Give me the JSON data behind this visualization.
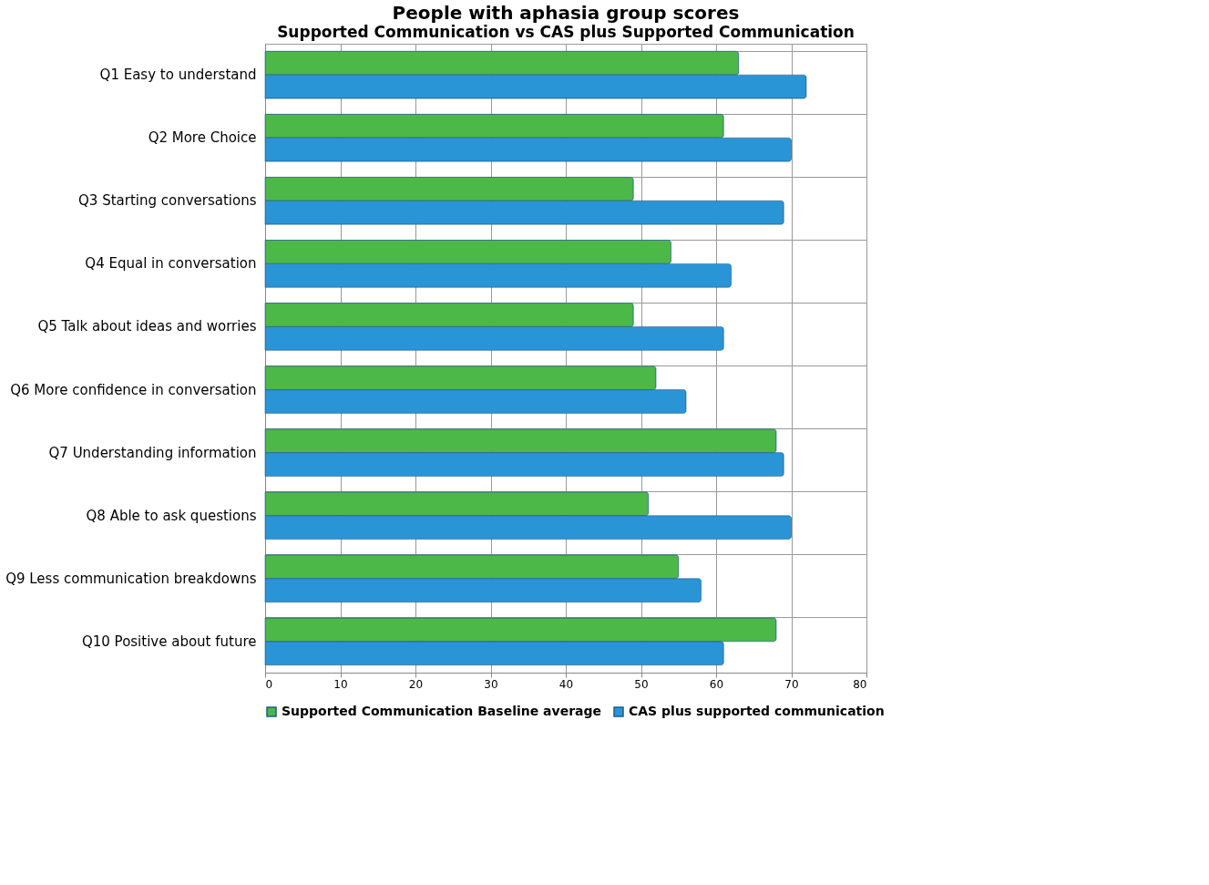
{
  "chart_data": {
    "type": "bar",
    "orientation": "horizontal",
    "title": "People with aphasia group scores",
    "subtitle": "Supported Communication vs CAS plus Supported Communication",
    "categories": [
      "Q1 Easy to understand",
      "Q2 More Choice",
      "Q3 Starting conversations",
      "Q4 Equal in conversation",
      "Q5 Talk about ideas and worries",
      "Q6 More confidence in conversation",
      "Q7 Understanding information",
      "Q8 Able to ask questions",
      "Q9 Less communication breakdowns",
      "Q10 Positive about future"
    ],
    "series": [
      {
        "name": "Supported Communication Baseline average",
        "color": "#4cb848",
        "values": [
          63,
          61,
          49,
          54,
          49,
          52,
          68,
          51,
          55,
          68
        ]
      },
      {
        "name": "CAS plus supported communication",
        "color": "#2a95d6",
        "values": [
          72,
          70,
          69,
          62,
          61,
          56,
          69,
          70,
          58,
          61
        ]
      }
    ],
    "xlim": [
      0,
      80
    ],
    "xticks": [
      0,
      10,
      20,
      30,
      40,
      50,
      60,
      70,
      80
    ],
    "grid": true,
    "legend": "bottom"
  }
}
